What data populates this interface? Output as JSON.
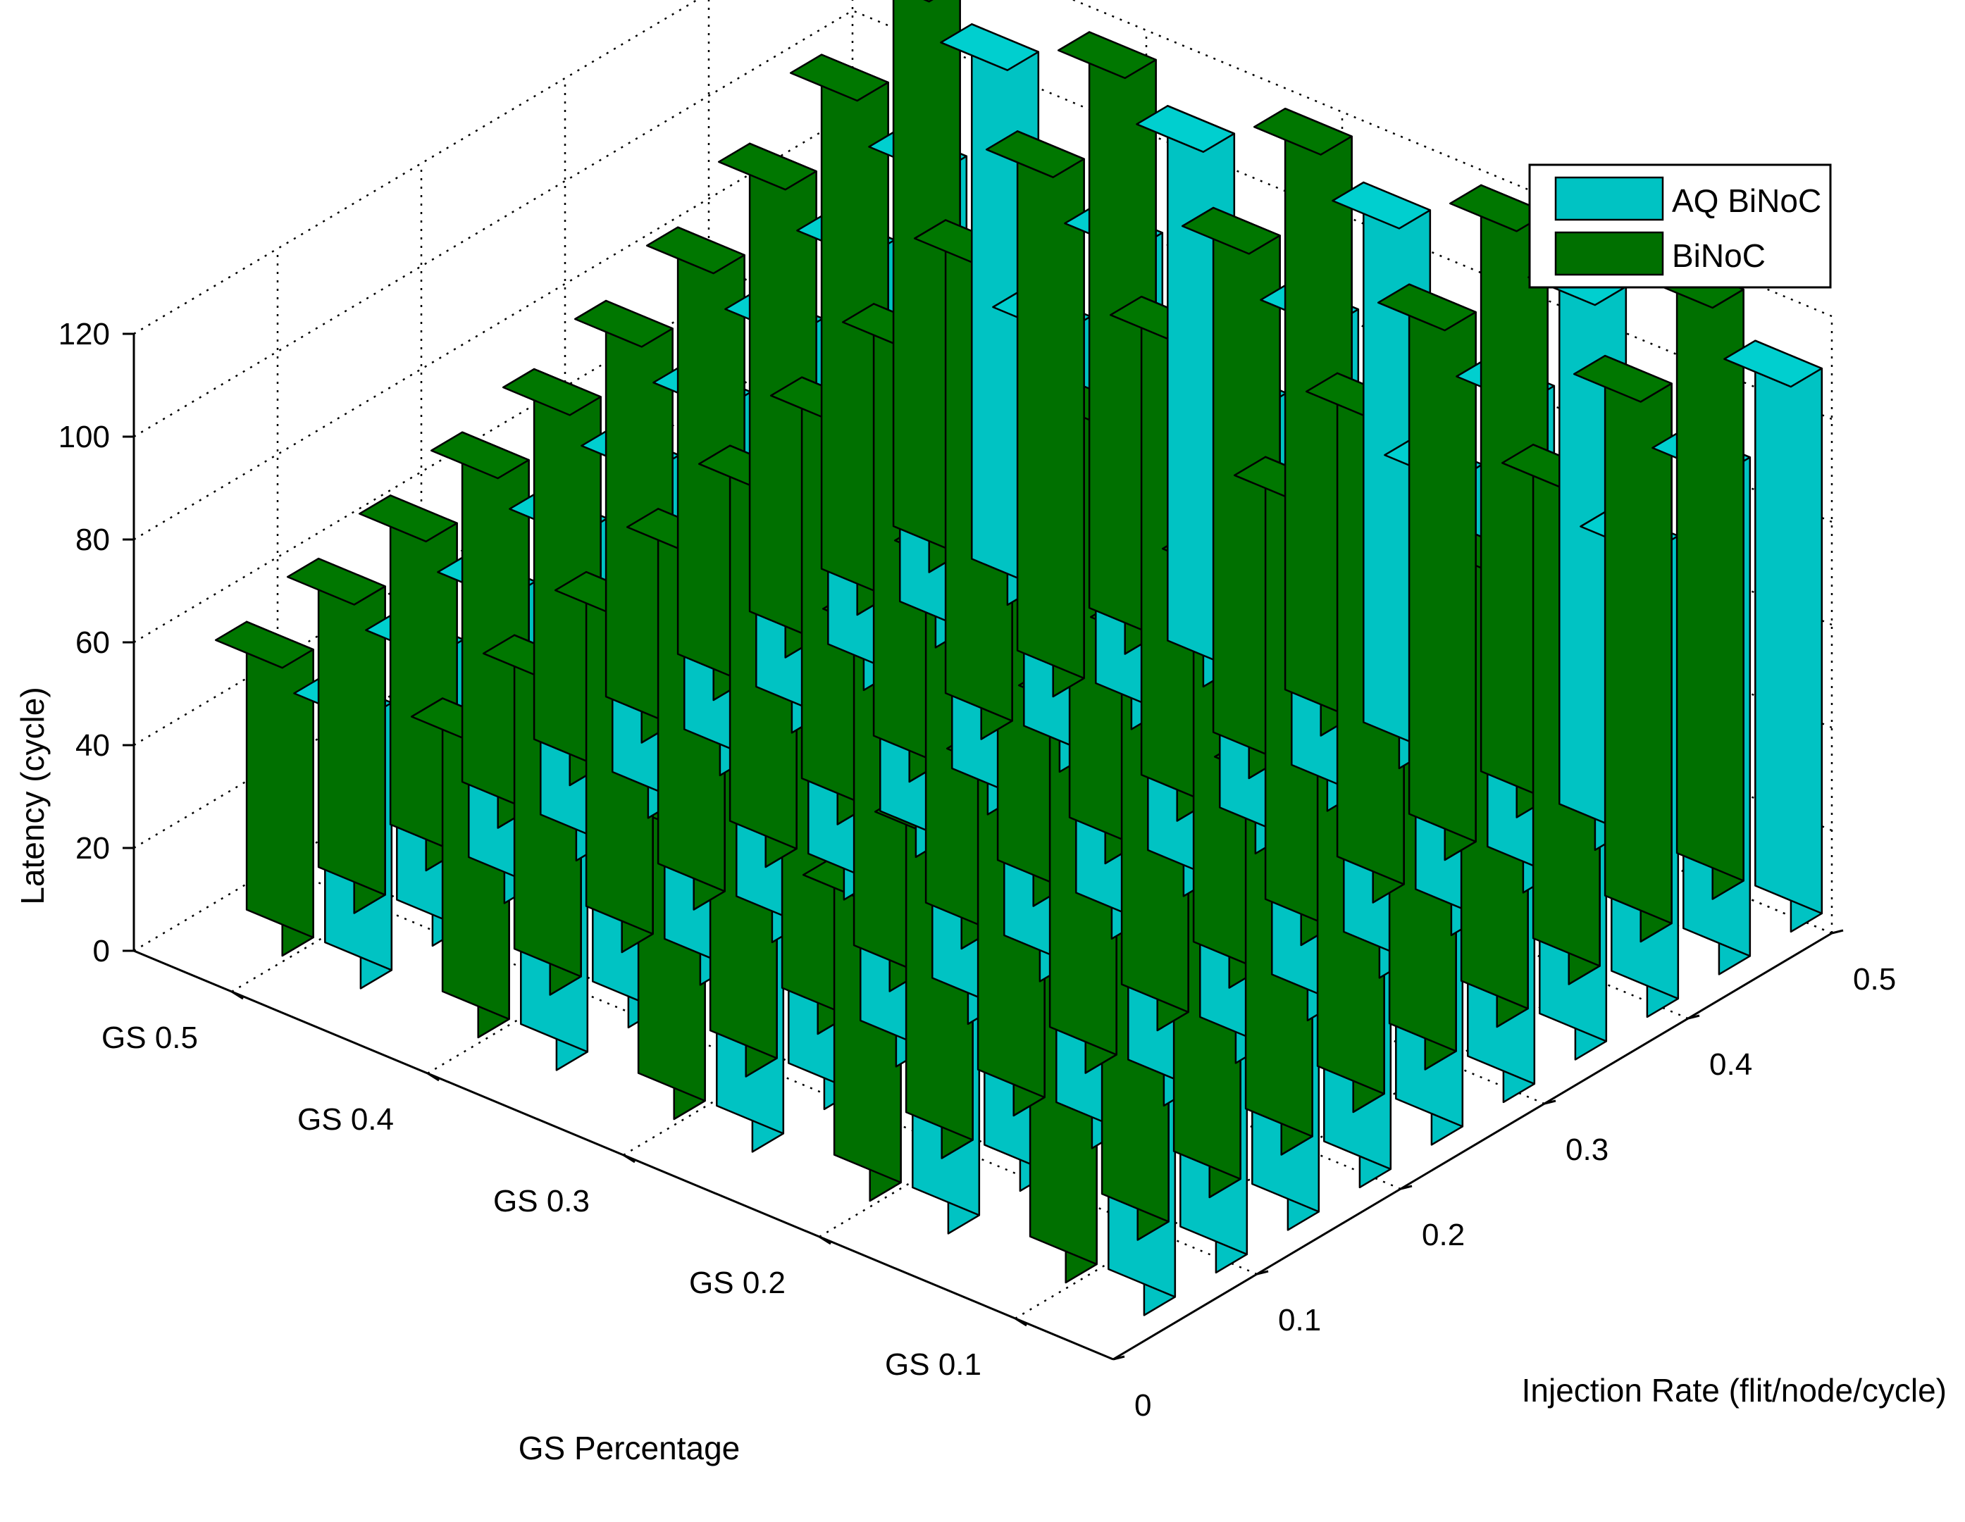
{
  "chart_data": {
    "type": "bar3d",
    "title": "",
    "zlabel": "Latency (cycle)",
    "xlabel": "GS Percentage",
    "ylabel": "Injection Rate (flit/node/cycle)",
    "zlim": [
      0,
      120
    ],
    "z_ticks": [
      0,
      20,
      40,
      60,
      80,
      100,
      120
    ],
    "gs_categories": [
      "GS 0.5",
      "GS 0.4",
      "GS 0.3",
      "GS 0.2",
      "GS 0.1"
    ],
    "injection_ticks": [
      0,
      0.1,
      0.2,
      0.3,
      0.4,
      0.5
    ],
    "injection_rates": [
      0.05,
      0.1,
      0.15,
      0.2,
      0.25,
      0.3,
      0.35,
      0.4,
      0.45,
      0.5
    ],
    "grid": true,
    "legend_position": "top-right",
    "series": [
      {
        "name": "AQ BiNoC",
        "color": "#00c3c3",
        "values": [
          [
            52,
            56,
            59,
            63,
            67,
            71,
            77,
            84,
            92,
            104
          ],
          [
            52,
            56,
            59,
            63,
            68,
            72,
            78,
            85,
            93,
            104
          ],
          [
            52,
            56,
            60,
            64,
            68,
            73,
            79,
            86,
            94,
            105
          ],
          [
            53,
            57,
            61,
            65,
            70,
            75,
            81,
            88,
            95,
            106
          ],
          [
            55,
            59,
            63,
            68,
            73,
            78,
            84,
            90,
            97,
            106
          ]
        ]
      },
      {
        "name": "BiNoC",
        "color": "#007000",
        "values": [
          [
            56,
            60,
            64,
            68,
            72,
            77,
            83,
            91,
            100,
            111
          ],
          [
            57,
            61,
            65,
            69,
            73,
            78,
            84,
            92,
            101,
            112
          ],
          [
            57,
            61,
            65,
            69,
            74,
            79,
            85,
            93,
            102,
            113
          ],
          [
            58,
            62,
            66,
            70,
            75,
            80,
            86,
            94,
            103,
            114
          ],
          [
            60,
            64,
            68,
            72,
            77,
            82,
            88,
            96,
            105,
            115
          ]
        ]
      }
    ]
  }
}
